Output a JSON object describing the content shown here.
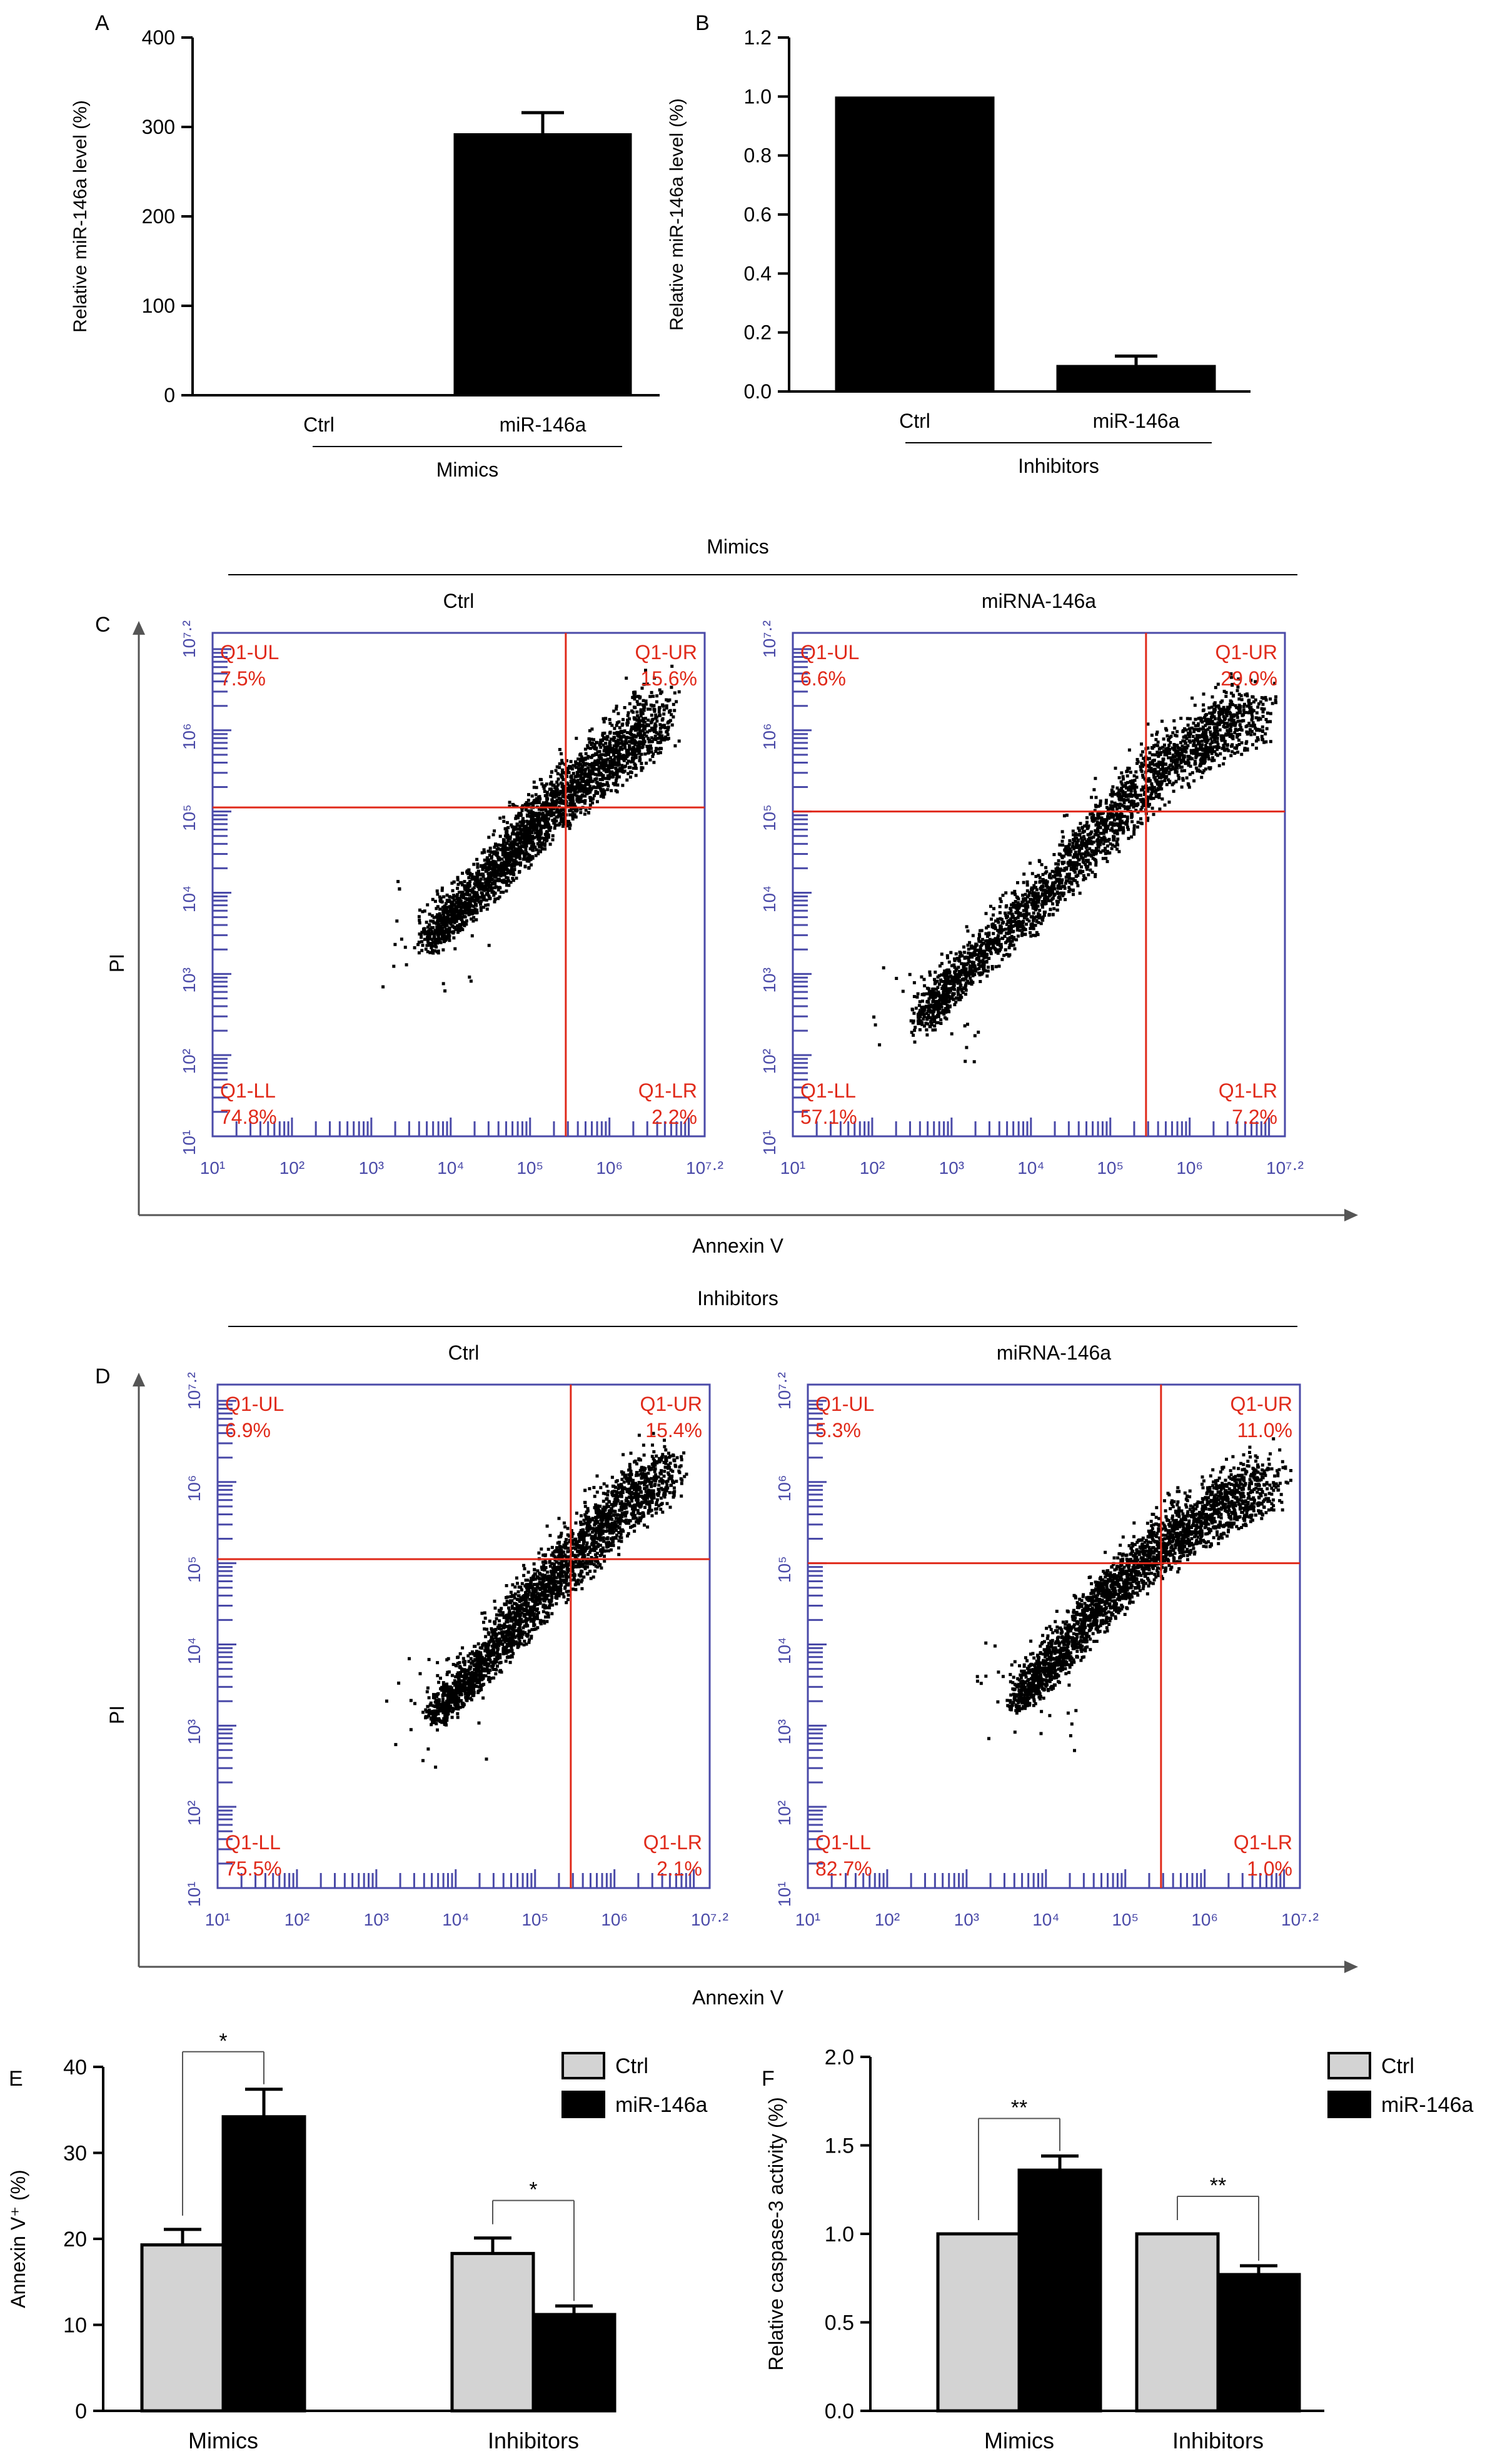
{
  "chart_data": [
    {
      "panel": "A",
      "type": "bar",
      "ylabel": "Relative miR-146a level (%)",
      "categories": [
        "Ctrl",
        "miR-146a"
      ],
      "values": [
        1,
        293
      ],
      "errors": [
        0,
        23
      ],
      "ylim": [
        0,
        400
      ],
      "yticks": [
        "0",
        "100",
        "200",
        "300",
        "400"
      ],
      "group_label": "Mimics",
      "bar_color": "#000000"
    },
    {
      "panel": "B",
      "type": "bar",
      "ylabel": "Relative miR-146a level (%)",
      "categories": [
        "Ctrl",
        "miR-146a"
      ],
      "values": [
        1.0,
        0.09
      ],
      "errors": [
        0,
        0.03
      ],
      "ylim": [
        0,
        1.2
      ],
      "yticks": [
        "0.0",
        "0.2",
        "0.4",
        "0.6",
        "0.8",
        "1.0",
        "1.2"
      ],
      "group_label": "Inhibitors",
      "bar_color": "#000000"
    },
    {
      "panel": "C",
      "type": "scatter",
      "group_title": "Mimics",
      "xlabel": "Annexin V",
      "ylabel": "PI",
      "axis_ticks": [
        "10¹",
        "10²",
        "10³",
        "10⁴",
        "10⁵",
        "10⁶",
        "10⁷·²"
      ],
      "axis_range_log10": [
        1,
        7.2
      ],
      "plots": [
        {
          "title": "Ctrl",
          "gate": {
            "x": 5.45,
            "y": 5.05
          },
          "quadrants": {
            "UL": "7.5%",
            "UR": "15.6%",
            "LL": "74.8%",
            "LR": "2.2%"
          },
          "cloud": [
            [
              3.7,
              3.4
            ],
            [
              4.2,
              3.9
            ],
            [
              4.7,
              4.4
            ],
            [
              5.1,
              4.9
            ],
            [
              5.6,
              5.3
            ],
            [
              6.1,
              5.7
            ],
            [
              6.6,
              6.2
            ]
          ]
        },
        {
          "title": "miRNA-146a",
          "gate": {
            "x": 5.45,
            "y": 5.0
          },
          "quadrants": {
            "UL": "6.6%",
            "UR": "29.0%",
            "LL": "57.1%",
            "LR": "7.2%"
          },
          "cloud": [
            [
              2.6,
              2.4
            ],
            [
              3.1,
              3.0
            ],
            [
              3.8,
              3.6
            ],
            [
              4.4,
              4.2
            ],
            [
              5.0,
              4.9
            ],
            [
              5.6,
              5.5
            ],
            [
              6.2,
              5.9
            ],
            [
              6.8,
              6.2
            ]
          ]
        }
      ]
    },
    {
      "panel": "D",
      "type": "scatter",
      "group_title": "Inhibitors",
      "xlabel": "Annexin V",
      "ylabel": "PI",
      "axis_ticks": [
        "10¹",
        "10²",
        "10³",
        "10⁴",
        "10⁵",
        "10⁶",
        "10⁷·²"
      ],
      "axis_range_log10": [
        1,
        7.2
      ],
      "plots": [
        {
          "title": "Ctrl",
          "gate": {
            "x": 5.45,
            "y": 5.05
          },
          "quadrants": {
            "UL": "6.9%",
            "UR": "15.4%",
            "LL": "75.5%",
            "LR": "2.1%"
          },
          "cloud": [
            [
              3.7,
              3.1
            ],
            [
              4.2,
              3.6
            ],
            [
              4.7,
              4.2
            ],
            [
              5.1,
              4.7
            ],
            [
              5.6,
              5.2
            ],
            [
              6.1,
              5.7
            ],
            [
              6.6,
              6.1
            ]
          ]
        },
        {
          "title": "miRNA-146a",
          "gate": {
            "x": 5.45,
            "y": 5.0
          },
          "quadrants": {
            "UL": "5.3%",
            "UR": "11.0%",
            "LL": "82.7%",
            "LR": "1.0%"
          },
          "cloud": [
            [
              3.6,
              3.3
            ],
            [
              4.1,
              3.8
            ],
            [
              4.6,
              4.4
            ],
            [
              5.1,
              4.9
            ],
            [
              5.6,
              5.3
            ],
            [
              6.2,
              5.7
            ],
            [
              6.8,
              6.0
            ]
          ]
        }
      ]
    },
    {
      "panel": "E",
      "type": "bar",
      "ylabel": "Annexin V⁺ (%)",
      "categories": [
        "Mimics",
        "Inhibitors"
      ],
      "series": [
        {
          "name": "Ctrl",
          "values": [
            19.3,
            18.3
          ],
          "errors": [
            1.8,
            1.8
          ],
          "color": "#d3d3d3"
        },
        {
          "name": "miR-146a",
          "values": [
            34.2,
            11.2
          ],
          "errors": [
            3.2,
            1.0
          ],
          "color": "#000000"
        }
      ],
      "ylim": [
        0,
        40
      ],
      "yticks": [
        "0",
        "10",
        "20",
        "30",
        "40"
      ],
      "significance": [
        "*",
        "*"
      ],
      "legend": "top-right"
    },
    {
      "panel": "F",
      "type": "bar",
      "ylabel": "Relative caspase-3 activity (%)",
      "categories": [
        "Mimics",
        "Inhibitors"
      ],
      "series": [
        {
          "name": "Ctrl",
          "values": [
            1.0,
            1.0
          ],
          "errors": [
            0,
            0
          ],
          "color": "#d3d3d3"
        },
        {
          "name": "miR-146a",
          "values": [
            1.36,
            0.77
          ],
          "errors": [
            0.08,
            0.05
          ],
          "color": "#000000"
        }
      ],
      "ylim": [
        0,
        2.0
      ],
      "yticks": [
        "0.0",
        "0.5",
        "1.0",
        "1.5",
        "2.0"
      ],
      "significance": [
        "**",
        "**"
      ],
      "legend": "top-right"
    }
  ],
  "colors": {
    "axis": "#000000",
    "flow_axis": "#4a4aa8",
    "gate": "#e02a1a",
    "quadrant_text": "#e02a1a",
    "ctrl_bar": "#d3d3d3",
    "treat_bar": "#000000"
  }
}
